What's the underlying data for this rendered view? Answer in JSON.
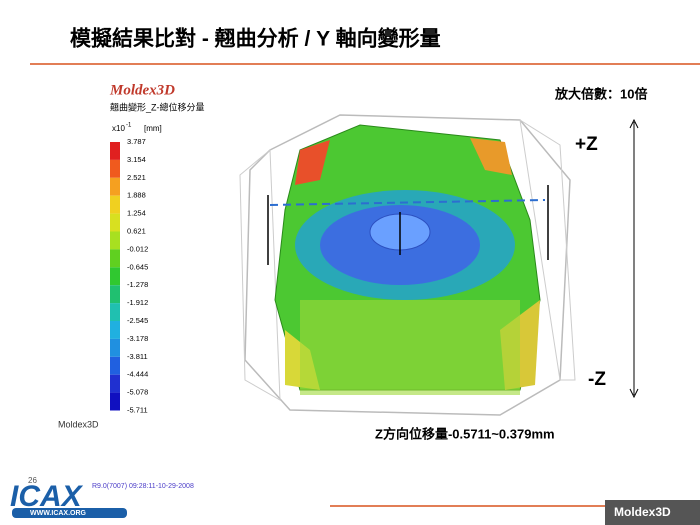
{
  "header": {
    "title": "模擬結果比對 - 翹曲分析 / Y 軸向變形量"
  },
  "legend": {
    "brand": "Moldex3D",
    "subtitle": "翹曲變形_Z-總位移分量",
    "unit_base": "x10",
    "unit_exp": "-1",
    "unit": "[mm]",
    "values": [
      "3.787",
      "3.154",
      "2.521",
      "1.888",
      "1.254",
      "0.621",
      "-0.012",
      "-0.645",
      "-1.278",
      "-1.912",
      "-2.545",
      "-3.178",
      "-3.811",
      "-4.444",
      "-5.078",
      "-5.711"
    ],
    "footer_brand": "Moldex3D"
  },
  "annotations": {
    "magnification": "放大倍數：10倍",
    "plus_z": "+Z",
    "minus_z": "-Z",
    "caption": "Z方向位移量-0.5711~0.379mm",
    "version": "R9.0(7007) 09:28:11-10-29-2008",
    "page": "26"
  },
  "footer": {
    "logo": "ICAX",
    "url": "WWW.ICAX.ORG",
    "brand": "Moldex3D"
  }
}
